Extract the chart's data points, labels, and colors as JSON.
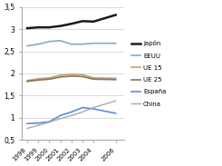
{
  "years": [
    1998,
    1999,
    2000,
    2001,
    2002,
    2003,
    2004,
    2006
  ],
  "series": {
    "Japón": [
      3.02,
      3.04,
      3.04,
      3.07,
      3.12,
      3.18,
      3.17,
      3.32
    ],
    "EEUU": [
      2.62,
      2.66,
      2.72,
      2.74,
      2.66,
      2.66,
      2.68,
      2.68
    ],
    "UE 15": [
      1.84,
      1.88,
      1.9,
      1.96,
      1.98,
      1.97,
      1.9,
      1.89
    ],
    "UE 25": [
      1.82,
      1.85,
      1.87,
      1.92,
      1.94,
      1.93,
      1.87,
      1.86
    ],
    "España": [
      0.87,
      0.88,
      0.91,
      1.05,
      1.13,
      1.23,
      1.2,
      1.1
    ],
    "China": [
      0.76,
      0.83,
      0.9,
      0.98,
      1.05,
      1.13,
      1.23,
      1.38
    ]
  },
  "colors": {
    "Japón": "#1a1a1a",
    "EEUU": "#7bafd4",
    "UE 15": "#c0a080",
    "UE 25": "#8b7355",
    "España": "#5b8dd9",
    "China": "#aaaaaa"
  },
  "linestyles": {
    "Japón": "-",
    "EEUU": "-",
    "UE 15": "-",
    "UE 25": "-",
    "España": "-",
    "China": "-"
  },
  "linewidths": {
    "Japón": 1.8,
    "EEUU": 1.2,
    "UE 15": 1.2,
    "UE 25": 1.2,
    "España": 1.2,
    "China": 1.0
  },
  "ylim": [
    0.5,
    3.5
  ],
  "yticks": [
    0.5,
    1.0,
    1.5,
    2.0,
    2.5,
    3.0,
    3.5
  ],
  "ytick_labels": [
    "0,5",
    "1",
    "1,5",
    "2",
    "2,5",
    "3",
    "3,5"
  ],
  "xtick_labels": [
    "1998",
    "1999",
    "2000",
    "2001",
    "2002",
    "2003",
    "2004",
    "2006"
  ],
  "background_color": "#ffffff",
  "grid_color": "#cccccc",
  "legend_order": [
    "Japón",
    "EEUU",
    "UE 15",
    "UE 25",
    "España",
    "China"
  ]
}
